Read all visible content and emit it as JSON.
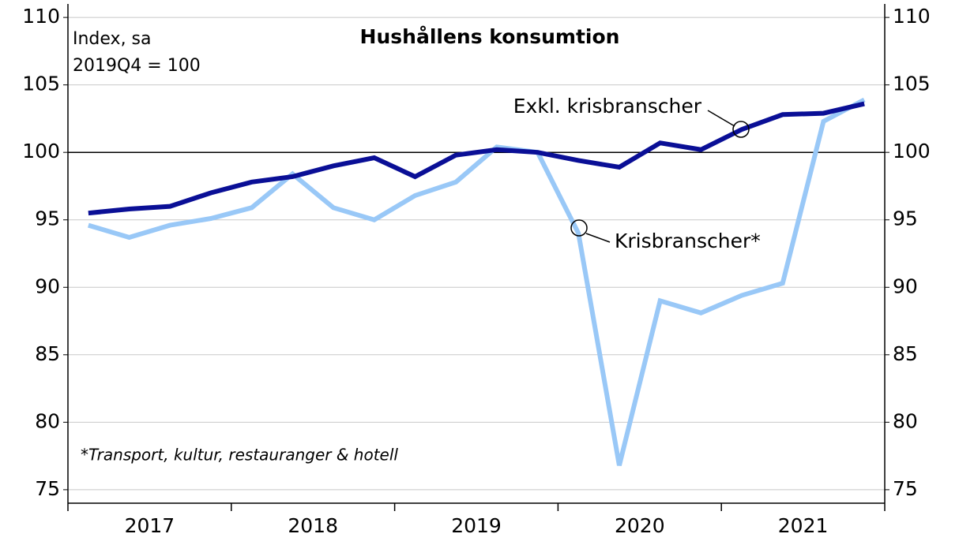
{
  "chart_data": {
    "type": "line",
    "title": "Hushållens konsumtion",
    "y_label": [
      "Index, sa",
      "2019Q4 = 100"
    ],
    "footnote": "*Transport, kultur, restauranger & hotell",
    "categories": [
      null,
      null,
      null,
      null,
      null,
      null,
      null,
      null,
      null,
      null,
      null,
      null,
      null,
      null,
      null,
      null,
      null,
      null,
      null,
      null
    ],
    "years": [
      "2017",
      "2018",
      "2019",
      "2020",
      "2021"
    ],
    "series": [
      {
        "name": "Exkl. krisbranscher",
        "color": "#0a0f96",
        "values": [
          95.5,
          95.8,
          96.0,
          97.0,
          97.8,
          98.2,
          99.0,
          99.6,
          98.2,
          99.8,
          100.2,
          100.0,
          99.4,
          98.9,
          100.7,
          100.2,
          101.7,
          102.8,
          102.9,
          103.6
        ]
      },
      {
        "name": "Krisbranscher*",
        "color": "#99c8f7",
        "values": [
          94.6,
          93.7,
          94.6,
          95.1,
          95.9,
          98.4,
          95.9,
          95.0,
          96.8,
          97.8,
          100.4,
          100.0,
          94.0,
          76.8,
          89.0,
          88.1,
          89.4,
          90.3,
          102.3,
          103.9
        ]
      }
    ],
    "ylim": [
      74,
      111
    ],
    "yticks": [
      75,
      80,
      85,
      90,
      95,
      100,
      105,
      110
    ],
    "y2lim": [
      74,
      111
    ],
    "y2ticks": [
      75,
      80,
      85,
      90,
      95,
      100,
      105,
      110
    ],
    "reference_line": 100,
    "grid": true
  }
}
